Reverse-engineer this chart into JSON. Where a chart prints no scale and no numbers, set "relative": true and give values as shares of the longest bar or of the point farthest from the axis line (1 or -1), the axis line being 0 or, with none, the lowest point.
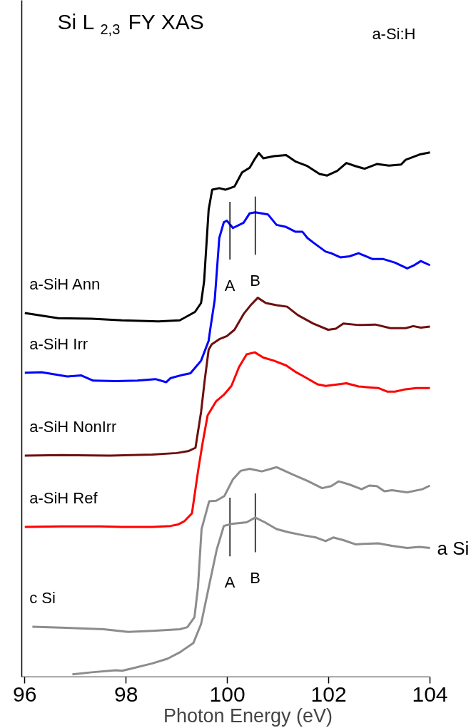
{
  "chart_data": {
    "type": "line",
    "relative": true,
    "title": "Si L$_{2,3}$ FY XAS",
    "subtitle": "a-Si:H",
    "xlabel": "Photon Energy (eV)",
    "xlim": [
      95.94,
      104
    ],
    "xticks": [
      96,
      98,
      100,
      102,
      104
    ],
    "grid": false,
    "legend": false,
    "tick_labels": "x",
    "marker": "none",
    "line_style": "solid",
    "series": [
      {
        "name": "a-SiH Ann",
        "color": "#000000",
        "x": [
          96.0,
          96.66,
          97.32,
          97.92,
          98.64,
          99.06,
          99.36,
          99.48,
          99.54,
          99.63,
          99.7,
          99.84,
          99.96,
          100.14,
          100.29,
          100.44,
          100.53,
          100.62,
          100.71,
          100.92,
          101.16,
          101.34,
          101.58,
          101.82,
          101.97,
          102.17,
          102.35,
          102.53,
          102.71,
          102.95,
          103.19,
          103.43,
          103.52,
          103.79,
          104.0
        ],
        "values": [
          0.694,
          0.684,
          0.683,
          0.68,
          0.678,
          0.68,
          0.696,
          0.713,
          0.754,
          0.891,
          0.929,
          0.932,
          0.929,
          0.935,
          0.962,
          0.971,
          0.986,
          0.999,
          0.989,
          0.993,
          0.995,
          0.983,
          0.974,
          0.959,
          0.956,
          0.965,
          0.98,
          0.974,
          0.969,
          0.978,
          0.975,
          0.977,
          0.986,
          0.996,
          1.0
        ]
      },
      {
        "name": "a-SiH Irr",
        "color": "#0000ff",
        "x": [
          96.0,
          96.33,
          96.84,
          97.11,
          97.35,
          97.8,
          98.22,
          98.58,
          98.79,
          98.88,
          99.12,
          99.27,
          99.48,
          99.63,
          99.66,
          99.75,
          99.84,
          99.93,
          99.99,
          100.11,
          100.32,
          100.44,
          100.55,
          100.8,
          100.97,
          101.16,
          101.34,
          101.48,
          101.58,
          101.7,
          101.94,
          102.05,
          102.23,
          102.41,
          102.59,
          102.86,
          103.07,
          103.31,
          103.55,
          103.67,
          103.82,
          104.0
        ],
        "values": [
          0.58,
          0.581,
          0.573,
          0.575,
          0.565,
          0.564,
          0.565,
          0.568,
          0.562,
          0.57,
          0.576,
          0.579,
          0.603,
          0.641,
          0.662,
          0.719,
          0.837,
          0.867,
          0.87,
          0.856,
          0.866,
          0.884,
          0.886,
          0.882,
          0.862,
          0.858,
          0.849,
          0.849,
          0.837,
          0.828,
          0.811,
          0.808,
          0.8,
          0.802,
          0.808,
          0.797,
          0.797,
          0.79,
          0.779,
          0.784,
          0.793,
          0.785
        ]
      },
      {
        "name": "a-SiH NonIrr",
        "color": "#6e0f0f",
        "x": [
          96.0,
          96.72,
          97.68,
          98.52,
          99.0,
          99.24,
          99.37,
          99.48,
          99.55,
          99.63,
          99.69,
          99.84,
          99.99,
          100.14,
          100.32,
          100.47,
          100.6,
          100.76,
          100.97,
          101.18,
          101.39,
          101.69,
          101.99,
          102.14,
          102.29,
          102.59,
          102.92,
          103.22,
          103.52,
          103.67,
          103.82,
          104.0
        ],
        "values": [
          0.422,
          0.423,
          0.422,
          0.424,
          0.427,
          0.431,
          0.437,
          0.505,
          0.564,
          0.624,
          0.634,
          0.644,
          0.65,
          0.662,
          0.692,
          0.71,
          0.723,
          0.713,
          0.709,
          0.706,
          0.69,
          0.674,
          0.662,
          0.664,
          0.674,
          0.671,
          0.672,
          0.665,
          0.665,
          0.669,
          0.666,
          0.668
        ]
      },
      {
        "name": "a-SiH Ref",
        "color": "#ff0000",
        "x": [
          96.0,
          96.72,
          97.5,
          97.92,
          98.52,
          98.88,
          99.03,
          99.15,
          99.3,
          99.42,
          99.51,
          99.61,
          99.78,
          99.93,
          100.08,
          100.23,
          100.38,
          100.54,
          100.71,
          100.92,
          101.16,
          101.34,
          101.51,
          101.78,
          101.94,
          102.11,
          102.35,
          102.59,
          102.83,
          102.98,
          103.16,
          103.31,
          103.49,
          103.73,
          104.0
        ],
        "values": [
          0.286,
          0.287,
          0.287,
          0.286,
          0.286,
          0.288,
          0.291,
          0.297,
          0.312,
          0.392,
          0.446,
          0.499,
          0.526,
          0.538,
          0.555,
          0.591,
          0.615,
          0.619,
          0.609,
          0.603,
          0.594,
          0.582,
          0.573,
          0.558,
          0.555,
          0.557,
          0.56,
          0.554,
          0.552,
          0.551,
          0.544,
          0.544,
          0.548,
          0.551,
          0.551
        ]
      },
      {
        "name": "c Si",
        "color": "#8c8c8c",
        "x": [
          96.15,
          96.72,
          97.56,
          98.04,
          98.52,
          99.06,
          99.21,
          99.35,
          99.42,
          99.49,
          99.64,
          99.78,
          99.94,
          100.11,
          100.26,
          100.44,
          100.68,
          100.97,
          101.27,
          101.58,
          101.87,
          102.05,
          102.2,
          102.41,
          102.65,
          102.8,
          102.95,
          103.1,
          103.25,
          103.55,
          103.85,
          104.0
        ],
        "values": [
          0.096,
          0.094,
          0.091,
          0.086,
          0.088,
          0.091,
          0.095,
          0.114,
          0.172,
          0.282,
          0.335,
          0.336,
          0.345,
          0.377,
          0.393,
          0.397,
          0.392,
          0.4,
          0.387,
          0.374,
          0.36,
          0.364,
          0.373,
          0.367,
          0.358,
          0.365,
          0.364,
          0.354,
          0.356,
          0.352,
          0.358,
          0.365
        ]
      },
      {
        "color": "#000000",
        "x": [
          100.05,
          100.05
        ],
        "values": [
          0.796,
          0.906
        ]
      },
      {
        "color": "#000000",
        "x": [
          100.55,
          100.55
        ],
        "values": [
          0.805,
          0.916
        ]
      },
      {
        "color": "#000000",
        "x": [
          100.05,
          100.05
        ],
        "values": [
          0.23,
          0.342
        ]
      },
      {
        "color": "#000000",
        "x": [
          100.55,
          100.55
        ],
        "values": [
          0.238,
          0.35
        ]
      },
      {
        "name": "a Si",
        "color": "#8c8c8c",
        "x": [
          96.94,
          97.32,
          97.8,
          97.92,
          98.1,
          98.52,
          98.82,
          99.06,
          99.33,
          99.48,
          99.66,
          99.79,
          99.93,
          100.08,
          100.38,
          100.55,
          100.74,
          100.97,
          101.21,
          101.51,
          101.75,
          101.94,
          102.09,
          102.29,
          102.53,
          102.71,
          102.98,
          103.25,
          103.55,
          103.79,
          104.0
        ],
        "values": [
          0.005,
          0.009,
          0.013,
          0.012,
          0.016,
          0.026,
          0.035,
          0.047,
          0.065,
          0.101,
          0.184,
          0.243,
          0.288,
          0.292,
          0.295,
          0.304,
          0.295,
          0.282,
          0.276,
          0.27,
          0.266,
          0.259,
          0.266,
          0.261,
          0.253,
          0.254,
          0.255,
          0.25,
          0.246,
          0.248,
          0.246
        ]
      }
    ],
    "annotations": [
      "A",
      "B",
      "A",
      "B"
    ]
  }
}
